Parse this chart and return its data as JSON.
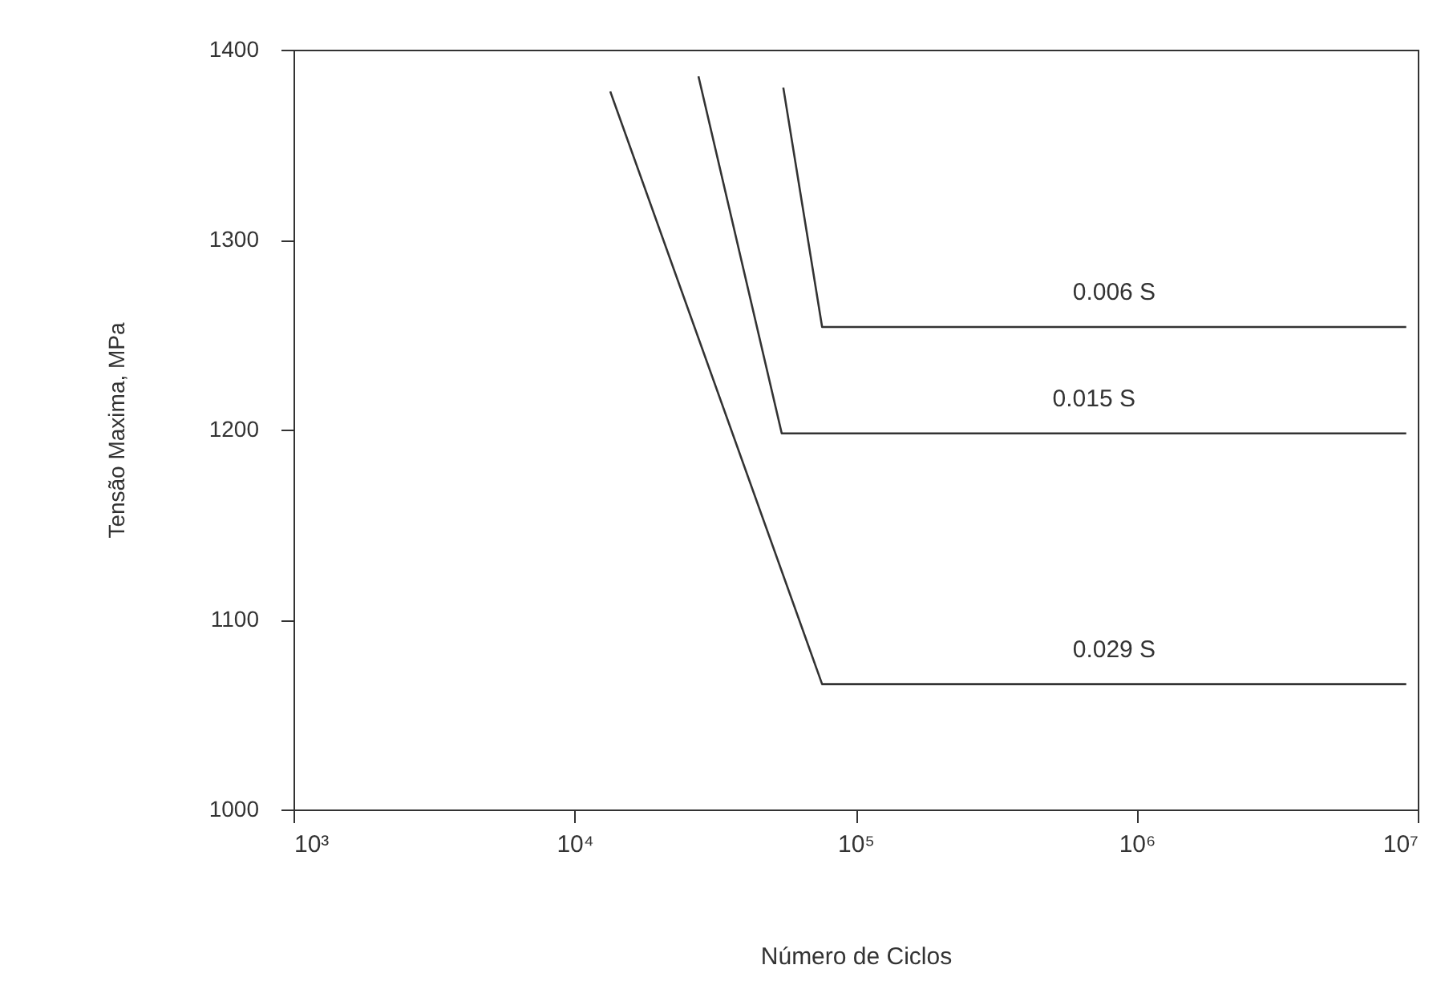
{
  "chart_data": {
    "type": "line",
    "xlabel": "Número de Ciclos",
    "ylabel": "Tensão Maxima, MPa",
    "log": "x",
    "xlim": [
      1000,
      10000000
    ],
    "xticks": [
      {
        "value": 1000,
        "label": "10³"
      },
      {
        "value": 10000,
        "label": "10⁴"
      },
      {
        "value": 100000,
        "label": "10⁵"
      },
      {
        "value": 1000000,
        "label": "10⁶"
      },
      {
        "value": 10000000,
        "label": "10⁷"
      }
    ],
    "ylim": [
      1000,
      1400
    ],
    "yticks": [
      1000,
      1100,
      1200,
      1300,
      1400
    ],
    "grid": false,
    "marker": "none",
    "line_style": "solid",
    "series": [
      {
        "name": "0.006 S",
        "color": "#333333",
        "x": [
          55300,
          76000,
          9100000
        ],
        "values": [
          1380,
          1254,
          1254
        ]
      },
      {
        "name": "0.015 S",
        "color": "#333333",
        "x": [
          27600,
          54600,
          9100000
        ],
        "values": [
          1386,
          1198,
          1198
        ]
      },
      {
        "name": "0.029 S",
        "color": "#333333",
        "x": [
          13400,
          76000,
          9100000
        ],
        "values": [
          1378,
          1066,
          1066
        ]
      }
    ]
  }
}
